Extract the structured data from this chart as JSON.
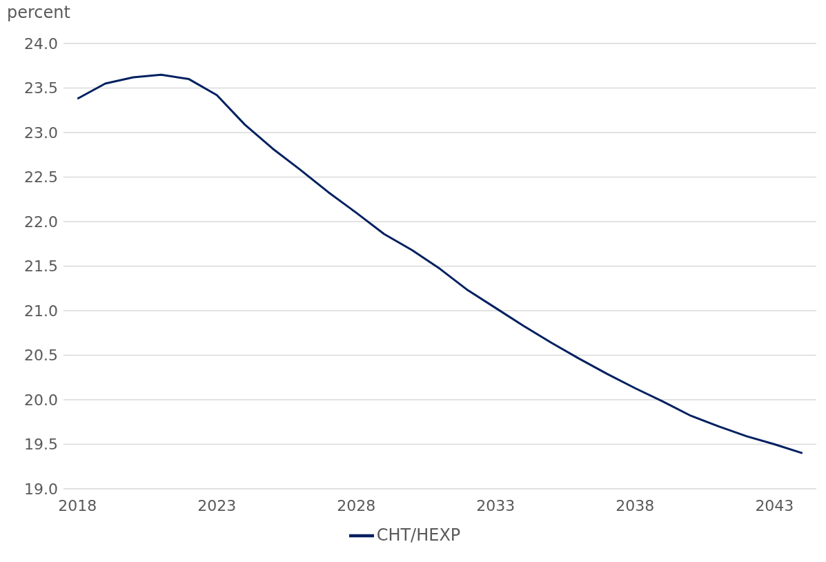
{
  "chart_data": {
    "type": "line",
    "ylabel": "percent",
    "x": [
      2018,
      2019,
      2020,
      2021,
      2022,
      2023,
      2024,
      2025,
      2026,
      2027,
      2028,
      2029,
      2030,
      2031,
      2032,
      2033,
      2034,
      2035,
      2036,
      2037,
      2038,
      2039,
      2040,
      2041,
      2042,
      2043,
      2044
    ],
    "series": [
      {
        "name": "CHT/HEXP",
        "color": "#002060",
        "values": [
          23.38,
          23.55,
          23.62,
          23.65,
          23.6,
          23.42,
          23.09,
          22.82,
          22.58,
          22.33,
          22.1,
          21.86,
          21.68,
          21.47,
          21.23,
          21.03,
          20.83,
          20.64,
          20.46,
          20.29,
          20.13,
          19.98,
          19.82,
          19.7,
          19.59,
          19.5,
          19.4
        ]
      }
    ],
    "xlim": [
      2017.5,
      2044.5
    ],
    "xticks": [
      2018,
      2023,
      2028,
      2033,
      2038,
      2043
    ],
    "ylim": [
      19,
      24
    ],
    "yticks": [
      {
        "value": 19,
        "label": "19.0"
      },
      19.5,
      {
        "value": 20,
        "label": "20.0"
      },
      20.5,
      {
        "value": 21,
        "label": "21.0"
      },
      21.5,
      {
        "value": 22,
        "label": "22.0"
      },
      22.5,
      {
        "value": 23,
        "label": "23.0"
      },
      23.5,
      {
        "value": 24,
        "label": "24.0"
      }
    ],
    "grid": "y",
    "legend": "bottom",
    "marker": "none",
    "line_style": "solid"
  }
}
